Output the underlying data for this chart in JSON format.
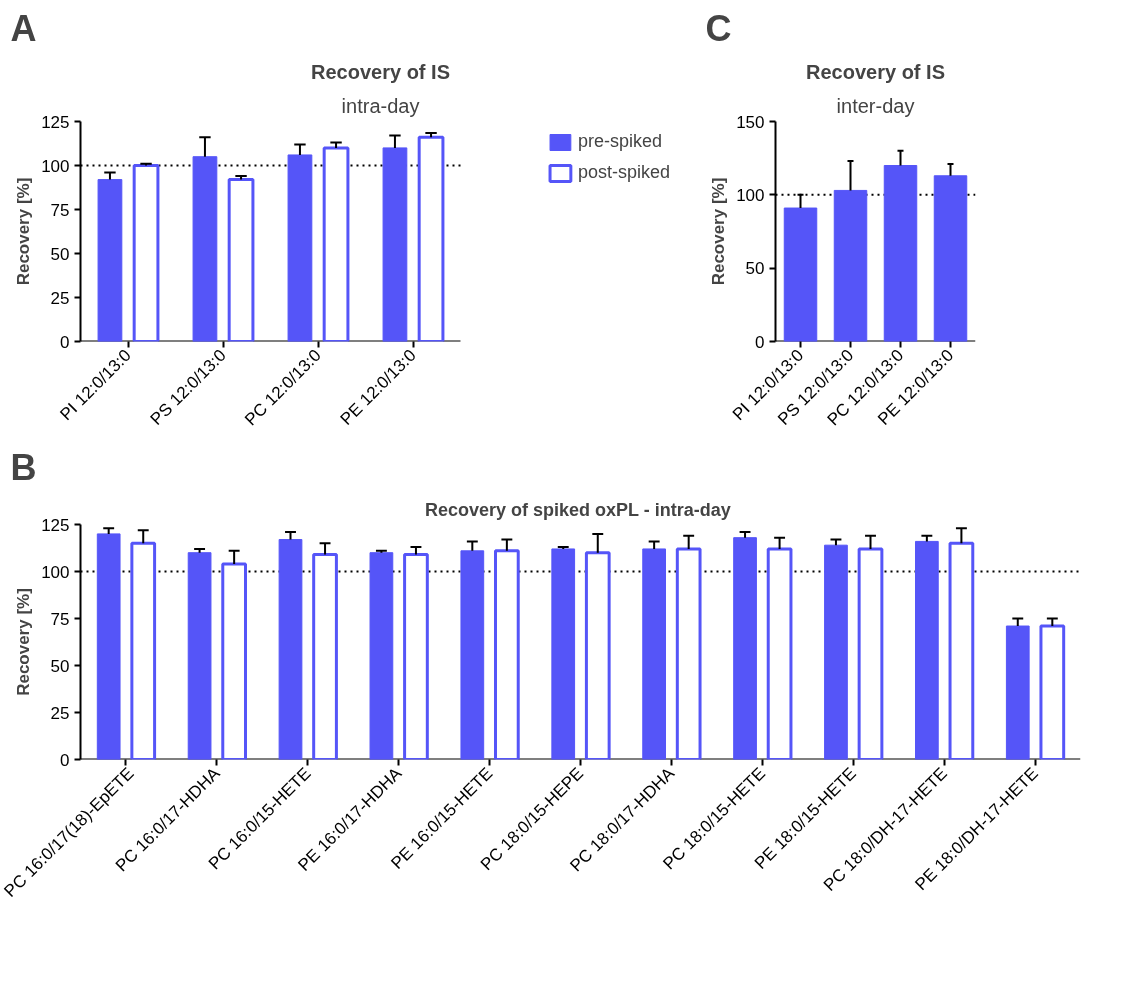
{
  "chart_data": [
    {
      "type": "bar",
      "title": "Recovery of IS",
      "subtitle": "intra-day",
      "ylabel": "Recovery [%]",
      "annotations": [
        "A"
      ],
      "categories": [
        "PI 12:0/13:0",
        "PS 12:0/13:0",
        "PC 12:0/13:0",
        "PE 12:0/13:0"
      ],
      "series": [
        {
          "name": "pre-spiked",
          "color": "#5555f8",
          "values": [
            92,
            105,
            106,
            110
          ],
          "errors": [
            [
              92,
              96
            ],
            [
              105,
              116
            ],
            [
              106,
              112
            ],
            [
              110,
              117
            ]
          ]
        },
        {
          "name": "post-spiked",
          "color": "#5555f8",
          "values": [
            100,
            92,
            110,
            116
          ],
          "errors": [
            [
              100,
              101
            ],
            [
              92,
              94
            ],
            [
              110,
              113
            ],
            [
              116,
              118.5
            ]
          ]
        }
      ],
      "ylim": [
        0,
        125
      ],
      "yticks": [
        0,
        25,
        50,
        75,
        100,
        125
      ],
      "grid": false,
      "legend": "right",
      "ref_lines": [
        {
          "axis": "y",
          "value": 100,
          "line_style": "dotted",
          "color": "#000000"
        }
      ]
    },
    {
      "type": "bar",
      "title": "Recovery of IS",
      "subtitle": "inter-day",
      "ylabel": "Recovery [%]",
      "annotations": [
        "C"
      ],
      "categories": [
        "PI 12:0/13:0",
        "PS 12:0/13:0",
        "PC 12:0/13:0",
        "PE 12:0/13:0"
      ],
      "series": [
        {
          "color": "#5555f8",
          "values": [
            91,
            103,
            120,
            113
          ],
          "errors": [
            [
              91,
              100
            ],
            [
              103,
              123
            ],
            [
              120,
              130
            ],
            [
              113,
              121
            ]
          ]
        }
      ],
      "ylim": [
        0,
        150
      ],
      "yticks": [
        0,
        50,
        100,
        150
      ],
      "grid": false,
      "ref_lines": [
        {
          "axis": "y",
          "value": 100,
          "line_style": "dotted",
          "color": "#000000"
        }
      ]
    },
    {
      "type": "bar",
      "title": "Recovery of spiked oxPL -",
      "subtitle": "intra-day",
      "ylabel": "Recovery [%]",
      "annotations": [
        "B"
      ],
      "categories": [
        "PC 16:0/17(18)-EpETE",
        "PC 16:0/17-HDHA",
        "PC 16:0/15-HETE",
        "PE 16:0/17-HDHA",
        "PE 16:0/15-HETE",
        "PC 18:0/15-HEPE",
        "PC 18:0/17-HDHA",
        "PC 18:0/15-HETE",
        "PE 18:0/15-HETE",
        "PC 18:0/DH-17-HETE",
        "PE 18:0/DH-17-HETE"
      ],
      "series": [
        {
          "color": "#5555f8",
          "values": [
            120,
            110,
            117,
            110,
            111,
            112,
            112,
            118,
            114,
            116,
            71
          ],
          "errors": [
            [
              120,
              123
            ],
            [
              110,
              112
            ],
            [
              117,
              121
            ],
            [
              110,
              111
            ],
            [
              111,
              116
            ],
            [
              112,
              113
            ],
            [
              112,
              116
            ],
            [
              118,
              121
            ],
            [
              114,
              117
            ],
            [
              116,
              119
            ],
            [
              71,
              75
            ]
          ]
        },
        {
          "color": "#5555f8",
          "values": [
            115,
            104,
            109,
            109,
            111,
            110,
            112,
            112,
            112,
            115,
            71
          ],
          "errors": [
            [
              115,
              122
            ],
            [
              104,
              111
            ],
            [
              109,
              115
            ],
            [
              109,
              113
            ],
            [
              111,
              117
            ],
            [
              110,
              120
            ],
            [
              112,
              119
            ],
            [
              112,
              118
            ],
            [
              112,
              119
            ],
            [
              115,
              123
            ],
            [
              71,
              75
            ]
          ]
        }
      ],
      "ylim": [
        0,
        125
      ],
      "yticks": [
        0,
        25,
        50,
        75,
        100,
        125
      ],
      "grid": false,
      "ref_lines": [
        {
          "axis": "y",
          "value": 100,
          "line_style": "dotted",
          "color": "#000000"
        }
      ]
    }
  ]
}
